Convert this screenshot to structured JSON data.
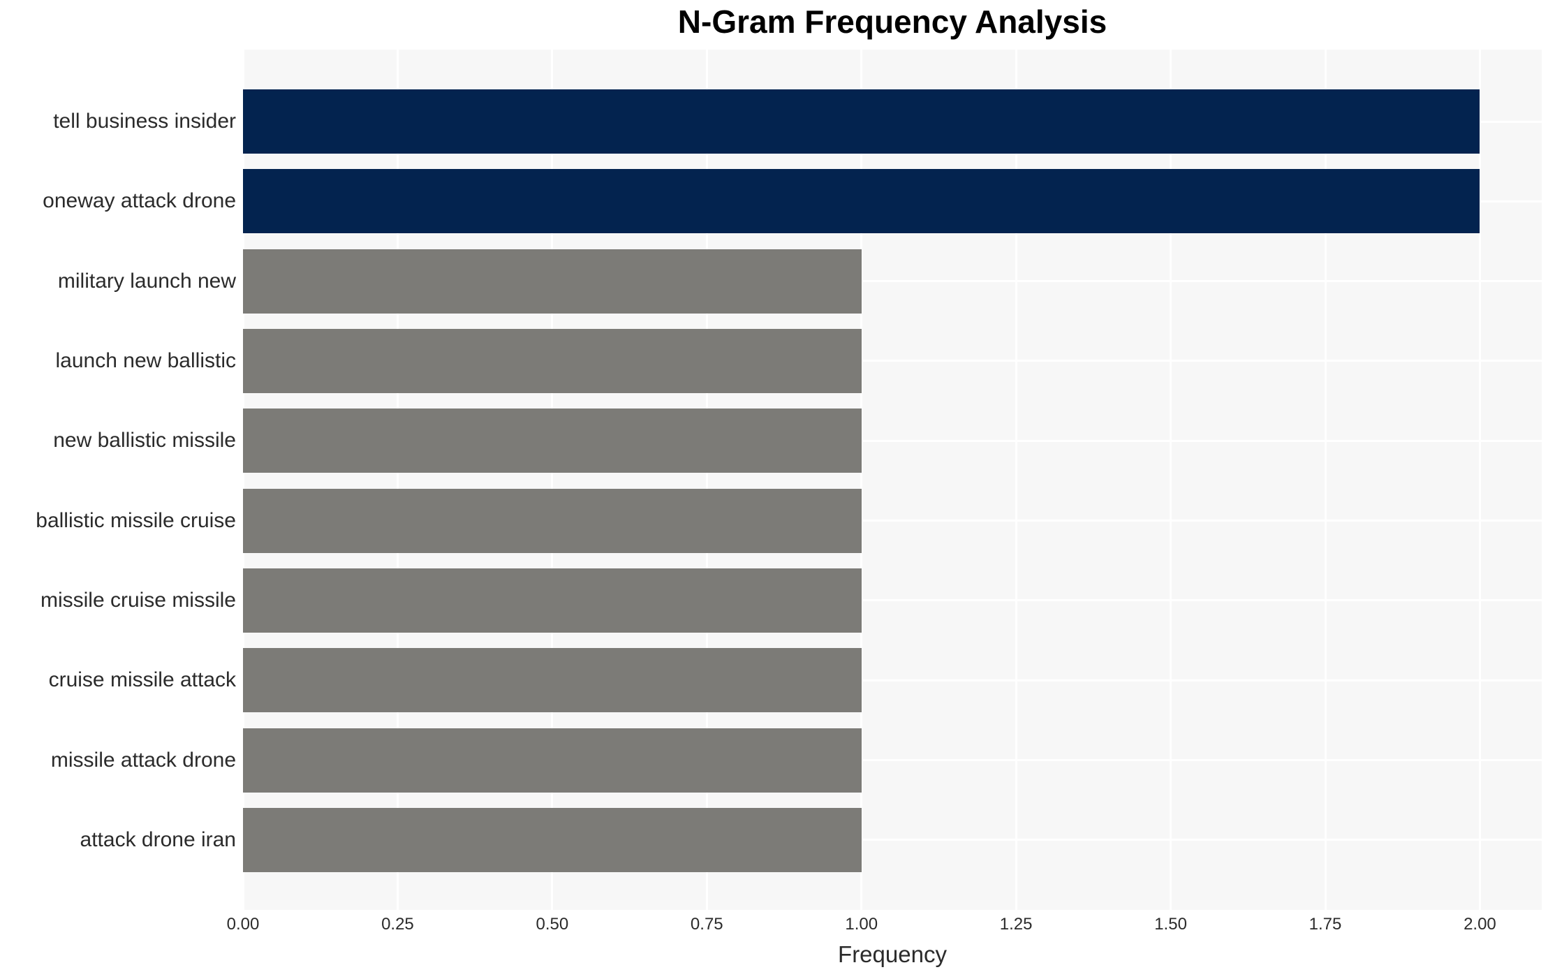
{
  "page": {
    "background": "#ffffff"
  },
  "chart_data": {
    "type": "bar",
    "orientation": "horizontal",
    "title": "N-Gram Frequency Analysis",
    "xlabel": "Frequency",
    "ylabel": "",
    "categories": [
      "tell business insider",
      "oneway attack drone",
      "military launch new",
      "launch new ballistic",
      "new ballistic missile",
      "ballistic missile cruise",
      "missile cruise missile",
      "cruise missile attack",
      "missile attack drone",
      "attack drone iran"
    ],
    "values": [
      2,
      2,
      1,
      1,
      1,
      1,
      1,
      1,
      1,
      1
    ],
    "bar_colors": [
      "#03234f",
      "#03234f",
      "#7c7b77",
      "#7c7b77",
      "#7c7b77",
      "#7c7b77",
      "#7c7b77",
      "#7c7b77",
      "#7c7b77",
      "#7c7b77"
    ],
    "xlim": [
      0,
      2.1
    ],
    "xticks": [
      0,
      0.25,
      0.5,
      0.75,
      1,
      1.25,
      1.5,
      1.75,
      2
    ],
    "xtick_labels": [
      "0.00",
      "0.25",
      "0.50",
      "0.75",
      "1.00",
      "1.25",
      "1.50",
      "1.75",
      "2.00"
    ],
    "grid": true,
    "grid_on_categories": true,
    "legend": false,
    "plot_background": "#f7f7f7",
    "grid_color": "#ffffff",
    "text_color": "#2b2b2b",
    "title_color": "#000000"
  }
}
